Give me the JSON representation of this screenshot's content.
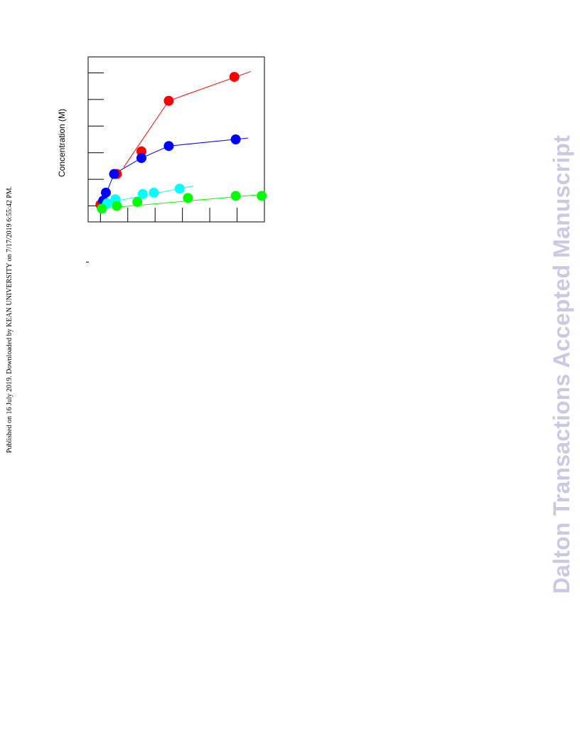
{
  "page": {
    "published_line": "Published on 16 July 2019. Downloaded by KEAN UNIVERSITY on 7/17/2019 6:55:42 PM.",
    "watermark": "Dalton Transactions Accepted Manuscript"
  },
  "chart_data": {
    "type": "line",
    "title": "",
    "xlabel": "",
    "ylabel": "Concentration (M)",
    "xlim": [
      -0.45,
      6.0
    ],
    "ylim": [
      -0.6,
      5.6
    ],
    "x_ticks": [
      0,
      1,
      2,
      3,
      4,
      5
    ],
    "y_ticks": [
      0,
      1,
      2,
      3,
      4,
      5
    ],
    "grid": false,
    "legend": "none",
    "series": [
      {
        "color": "#ff0000",
        "points": [
          [
            0.0,
            0.05
          ],
          [
            0.6,
            1.2
          ],
          [
            1.5,
            2.05
          ],
          [
            2.5,
            3.95
          ],
          [
            4.9,
            4.85
          ]
        ],
        "fit": [
          [
            0.85,
            1.45
          ],
          [
            2.5,
            3.95
          ],
          [
            5.5,
            5.05
          ]
        ]
      },
      {
        "color": "#0000ff",
        "points": [
          [
            0.1,
            0.2
          ],
          [
            0.2,
            0.5
          ],
          [
            0.5,
            1.2
          ],
          [
            1.5,
            1.8
          ],
          [
            2.5,
            2.25
          ],
          [
            4.95,
            2.5
          ]
        ],
        "fit": [
          [
            0.1,
            0.2
          ],
          [
            0.5,
            1.2
          ],
          [
            1.5,
            1.8
          ],
          [
            2.5,
            2.25
          ],
          [
            5.4,
            2.55
          ]
        ]
      },
      {
        "color": "#00ffff",
        "points": [
          [
            0.25,
            0.1
          ],
          [
            0.55,
            0.25
          ],
          [
            1.55,
            0.45
          ],
          [
            1.95,
            0.5
          ],
          [
            2.9,
            0.65
          ]
        ],
        "fit": [
          [
            0.15,
            0.1
          ],
          [
            3.4,
            0.75
          ]
        ]
      },
      {
        "color": "#00ff00",
        "points": [
          [
            0.05,
            -0.1
          ],
          [
            0.6,
            0.0
          ],
          [
            1.35,
            0.15
          ],
          [
            3.2,
            0.3
          ],
          [
            4.95,
            0.38
          ],
          [
            5.9,
            0.38
          ]
        ],
        "fit": [
          [
            0.0,
            -0.1
          ],
          [
            5.9,
            0.43
          ]
        ]
      }
    ]
  }
}
